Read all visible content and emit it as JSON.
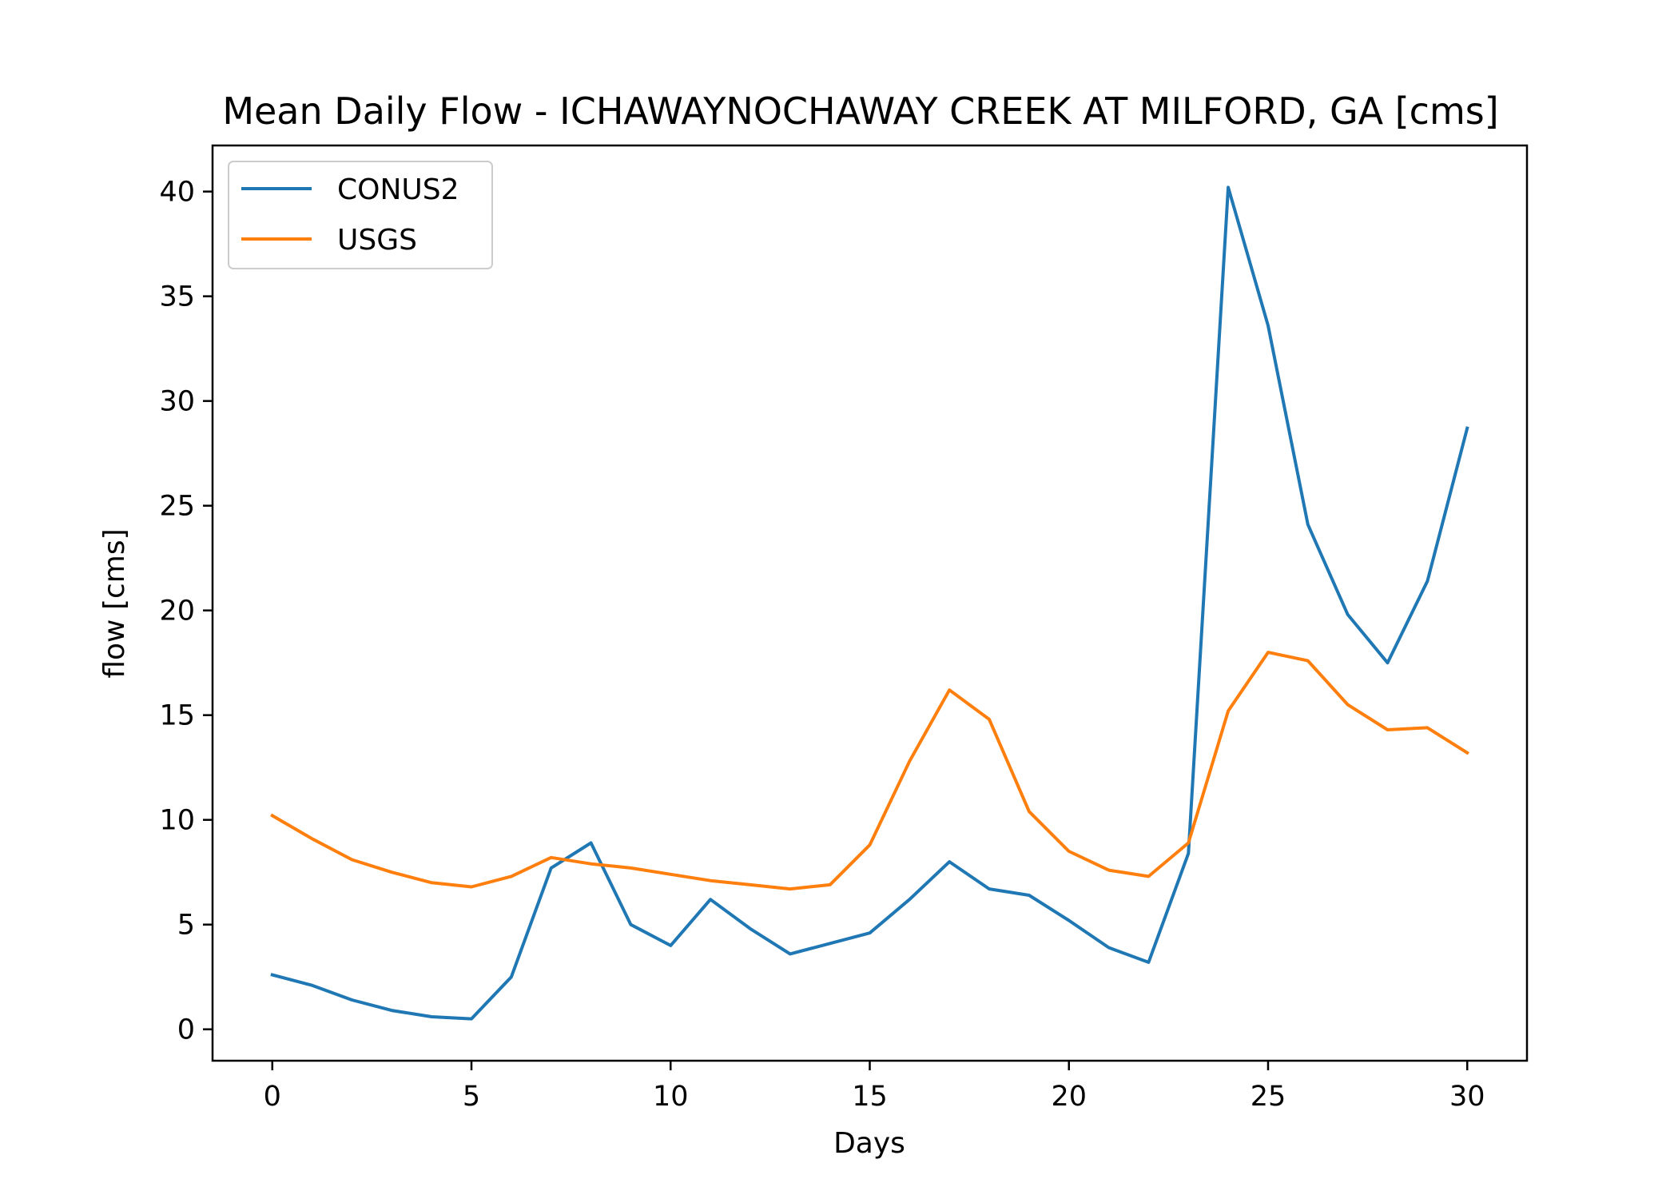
{
  "chart_data": {
    "type": "line",
    "title": "Mean Daily Flow - ICHAWAYNOCHAWAY CREEK AT MILFORD, GA [cms]",
    "xlabel": "Days",
    "ylabel": "flow [cms]",
    "xlim": [
      -1.5,
      31.5
    ],
    "ylim": [
      -1.5,
      42.2
    ],
    "xticks": [
      0,
      5,
      10,
      15,
      20,
      25,
      30
    ],
    "yticks": [
      0,
      5,
      10,
      15,
      20,
      25,
      30,
      35,
      40
    ],
    "grid": false,
    "legend_position": "top-left",
    "x": [
      0,
      1,
      2,
      3,
      4,
      5,
      6,
      7,
      8,
      9,
      10,
      11,
      12,
      13,
      14,
      15,
      16,
      17,
      18,
      19,
      20,
      21,
      22,
      23,
      24,
      25,
      26,
      27,
      28,
      29,
      30
    ],
    "series": [
      {
        "name": "CONUS2",
        "color": "#1f77b4",
        "values": [
          2.6,
          2.1,
          1.4,
          0.9,
          0.6,
          0.5,
          2.5,
          7.7,
          8.9,
          5.0,
          4.0,
          6.2,
          4.8,
          3.6,
          4.1,
          4.6,
          6.2,
          8.0,
          6.7,
          6.4,
          5.2,
          3.9,
          3.2,
          8.4,
          40.2,
          33.6,
          24.1,
          19.8,
          17.5,
          21.4,
          28.7
        ]
      },
      {
        "name": "USGS",
        "color": "#ff7f0e",
        "values": [
          10.2,
          9.1,
          8.1,
          7.5,
          7.0,
          6.8,
          7.3,
          8.2,
          7.9,
          7.7,
          7.4,
          7.1,
          6.9,
          6.7,
          6.9,
          8.8,
          12.8,
          16.2,
          14.8,
          10.4,
          8.5,
          7.6,
          7.3,
          8.9,
          15.2,
          18.0,
          17.6,
          15.5,
          14.3,
          14.4,
          13.2
        ]
      }
    ]
  }
}
